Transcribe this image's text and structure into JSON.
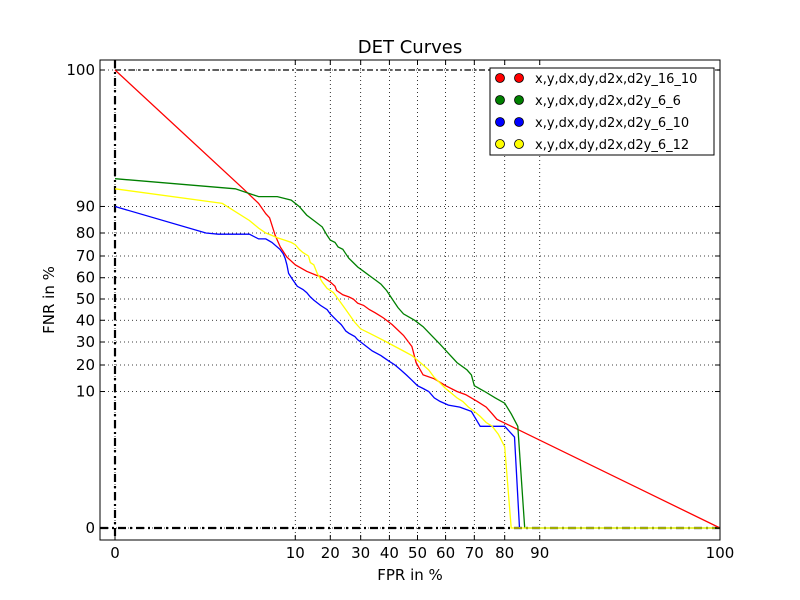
{
  "chart_data": {
    "type": "line",
    "title": "DET Curves",
    "xlabel": "FPR in %",
    "ylabel": "FNR in %",
    "grid": true,
    "legend_position": "top-right",
    "x_ticks": [
      {
        "value": 0,
        "label": "0"
      },
      {
        "value": 10,
        "label": "10"
      },
      {
        "value": 20,
        "label": "20"
      },
      {
        "value": 30,
        "label": "30"
      },
      {
        "value": 40,
        "label": "40"
      },
      {
        "value": 50,
        "label": "50"
      },
      {
        "value": 60,
        "label": "60"
      },
      {
        "value": 70,
        "label": "70"
      },
      {
        "value": 80,
        "label": "80"
      },
      {
        "value": 90,
        "label": "90"
      },
      {
        "value": 100,
        "label": "100"
      }
    ],
    "y_ticks": [
      {
        "value": 0,
        "label": "0"
      },
      {
        "value": 10,
        "label": "10"
      },
      {
        "value": 20,
        "label": "20"
      },
      {
        "value": 30,
        "label": "30"
      },
      {
        "value": 40,
        "label": "40"
      },
      {
        "value": 50,
        "label": "50"
      },
      {
        "value": 60,
        "label": "60"
      },
      {
        "value": 70,
        "label": "70"
      },
      {
        "value": 80,
        "label": "80"
      },
      {
        "value": 90,
        "label": "90"
      },
      {
        "value": 100,
        "label": "100"
      }
    ],
    "series": [
      {
        "name": "x,y,dx,dy,d2x,d2y_16_10",
        "color": "#ff0000",
        "points": [
          [
            0,
            100
          ],
          [
            1.5,
            95
          ],
          [
            3,
            91
          ],
          [
            4,
            87.5
          ],
          [
            4.6,
            86
          ],
          [
            5.6,
            79
          ],
          [
            6.6,
            74
          ],
          [
            8,
            69.5
          ],
          [
            10,
            66
          ],
          [
            13,
            63
          ],
          [
            16,
            61
          ],
          [
            17.5,
            60.5
          ],
          [
            19,
            59
          ],
          [
            20,
            58
          ],
          [
            21.5,
            56
          ],
          [
            22,
            54
          ],
          [
            24,
            52
          ],
          [
            26,
            51
          ],
          [
            27.5,
            50
          ],
          [
            29,
            48
          ],
          [
            31,
            47
          ],
          [
            33,
            45
          ],
          [
            35,
            43.5
          ],
          [
            38,
            41
          ],
          [
            41,
            38
          ],
          [
            45,
            33
          ],
          [
            48,
            28
          ],
          [
            49.5,
            21
          ],
          [
            52,
            16
          ],
          [
            56,
            14.5
          ],
          [
            60,
            12
          ],
          [
            64,
            10
          ],
          [
            67,
            9
          ],
          [
            71,
            7
          ],
          [
            74,
            5.5
          ],
          [
            76,
            4
          ],
          [
            77.5,
            3
          ],
          [
            100,
            0
          ]
        ]
      },
      {
        "name": "x,y,dx,dy,d2x,d2y_6_6",
        "color": "#008000",
        "points": [
          [
            0,
            97
          ],
          [
            1,
            95
          ],
          [
            3,
            93
          ],
          [
            6,
            93
          ],
          [
            9,
            92
          ],
          [
            11,
            90
          ],
          [
            13,
            87
          ],
          [
            15,
            85
          ],
          [
            17.5,
            82.5
          ],
          [
            19,
            79
          ],
          [
            20,
            77
          ],
          [
            21.5,
            76
          ],
          [
            22.5,
            74
          ],
          [
            24,
            73
          ],
          [
            25,
            71
          ],
          [
            26,
            69
          ],
          [
            27.5,
            67
          ],
          [
            29,
            65
          ],
          [
            31,
            63
          ],
          [
            33,
            61
          ],
          [
            35.5,
            58.5
          ],
          [
            37,
            57
          ],
          [
            39,
            54
          ],
          [
            41,
            50
          ],
          [
            43,
            46
          ],
          [
            45,
            43
          ],
          [
            49,
            40
          ],
          [
            52,
            37
          ],
          [
            55,
            33
          ],
          [
            58,
            29
          ],
          [
            61,
            25
          ],
          [
            64,
            21
          ],
          [
            67.5,
            18
          ],
          [
            69,
            16
          ],
          [
            70,
            12
          ],
          [
            73.5,
            10
          ],
          [
            77,
            8
          ],
          [
            80,
            6.5
          ],
          [
            82,
            4
          ],
          [
            84,
            2
          ],
          [
            86,
            0
          ],
          [
            100,
            0
          ]
        ]
      },
      {
        "name": "x,y,dx,dy,d2x,d2y_6_10",
        "color": "#0000ff",
        "points": [
          [
            0,
            90
          ],
          [
            0.2,
            80
          ],
          [
            0.4,
            79.5
          ],
          [
            2,
            79.5
          ],
          [
            3,
            77.5
          ],
          [
            4,
            77.5
          ],
          [
            5,
            76
          ],
          [
            6.5,
            73
          ],
          [
            7.2,
            71
          ],
          [
            7.6,
            69
          ],
          [
            8,
            66
          ],
          [
            8.4,
            62
          ],
          [
            9.4,
            59
          ],
          [
            10.5,
            56
          ],
          [
            12,
            54.5
          ],
          [
            13,
            53
          ],
          [
            14,
            51
          ],
          [
            15,
            49.5
          ],
          [
            17,
            47
          ],
          [
            19,
            45
          ],
          [
            20,
            43
          ],
          [
            22,
            40
          ],
          [
            23.5,
            38
          ],
          [
            24,
            37
          ],
          [
            25,
            35
          ],
          [
            26,
            34
          ],
          [
            28,
            32.5
          ],
          [
            29,
            31
          ],
          [
            30,
            30
          ],
          [
            32,
            28
          ],
          [
            34,
            26
          ],
          [
            37,
            24
          ],
          [
            40,
            21.5
          ],
          [
            42,
            20
          ],
          [
            44,
            18
          ],
          [
            46,
            16
          ],
          [
            48,
            14
          ],
          [
            50,
            12
          ],
          [
            52,
            11
          ],
          [
            54,
            10
          ],
          [
            56,
            8
          ],
          [
            58,
            7
          ],
          [
            61,
            6
          ],
          [
            65,
            5.5
          ],
          [
            69,
            4.5
          ],
          [
            72,
            2
          ],
          [
            75,
            2
          ],
          [
            78,
            2
          ],
          [
            80,
            2
          ],
          [
            83,
            1
          ],
          [
            84.5,
            0
          ]
        ]
      },
      {
        "name": "x,y,dx,dy,d2x,d2y_6_12",
        "color": "#ffff00",
        "points": [
          [
            0,
            95
          ],
          [
            0.5,
            91
          ],
          [
            2,
            85
          ],
          [
            3,
            82
          ],
          [
            4,
            80
          ],
          [
            5,
            79
          ],
          [
            6,
            78
          ],
          [
            7.5,
            77
          ],
          [
            9,
            76
          ],
          [
            10,
            75
          ],
          [
            11,
            73
          ],
          [
            12,
            71.5
          ],
          [
            13.5,
            70
          ],
          [
            14,
            67
          ],
          [
            15,
            66
          ],
          [
            16,
            62
          ],
          [
            17.5,
            58
          ],
          [
            18.5,
            56
          ],
          [
            19,
            55
          ],
          [
            21,
            53
          ],
          [
            22,
            51
          ],
          [
            23,
            49
          ],
          [
            25,
            45
          ],
          [
            26.5,
            42
          ],
          [
            28,
            39
          ],
          [
            30,
            36
          ],
          [
            33,
            34
          ],
          [
            36,
            32
          ],
          [
            39,
            30
          ],
          [
            42,
            28
          ],
          [
            45,
            26
          ],
          [
            48,
            24
          ],
          [
            50,
            22
          ],
          [
            52,
            20
          ],
          [
            54,
            18
          ],
          [
            56,
            15
          ],
          [
            58,
            13
          ],
          [
            60,
            11
          ],
          [
            62,
            9.5
          ],
          [
            64,
            8
          ],
          [
            66,
            7
          ],
          [
            68,
            5.5
          ],
          [
            70,
            4.5
          ],
          [
            72,
            3.5
          ],
          [
            74,
            2.5
          ],
          [
            76,
            2
          ],
          [
            78,
            1.2
          ],
          [
            80,
            0.5
          ],
          [
            82,
            0
          ],
          [
            86,
            0
          ],
          [
            100,
            0
          ]
        ]
      }
    ]
  }
}
